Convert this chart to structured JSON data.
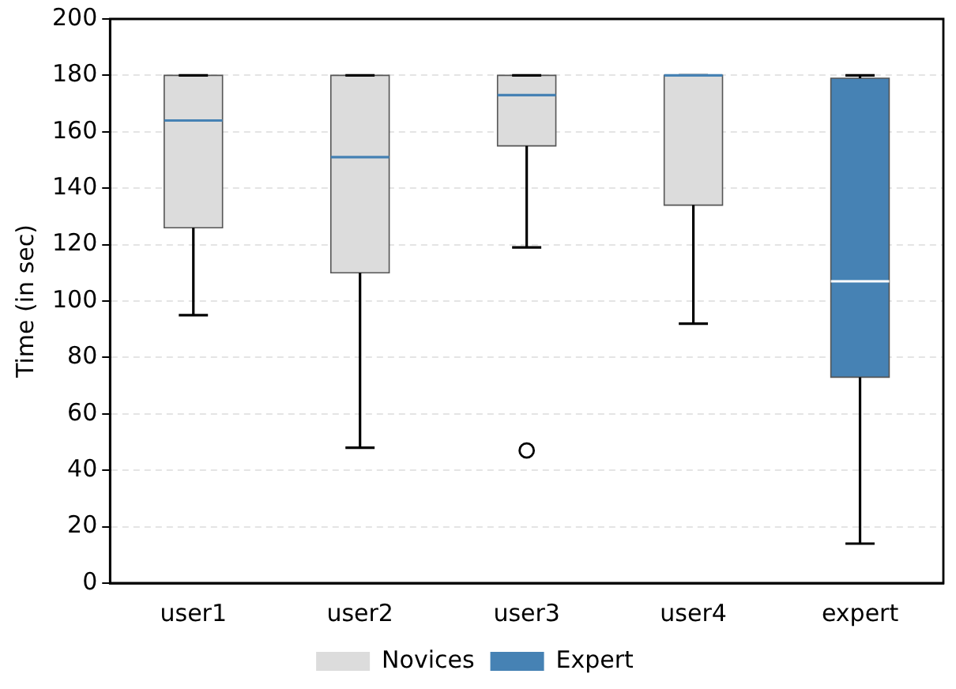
{
  "chart_data": {
    "type": "box",
    "ylabel": "Time (in sec)",
    "categories": [
      "user1",
      "user2",
      "user3",
      "user4",
      "expert"
    ],
    "ylim": [
      0,
      200
    ],
    "yticks": [
      0,
      20,
      40,
      60,
      80,
      100,
      120,
      140,
      160,
      180,
      200
    ],
    "grid": "y",
    "legend": "bottom",
    "series": [
      {
        "name": "Novices",
        "color": "#dcdcdc",
        "boxes": [
          {
            "low": 95,
            "q1": 126,
            "median": 164,
            "q3": 180,
            "high": 180
          },
          {
            "low": 48,
            "q1": 110,
            "median": 151,
            "q3": 180,
            "high": 180
          },
          {
            "low": 119,
            "q1": 155,
            "median": 173,
            "q3": 180,
            "high": 180,
            "outliers": [
              47
            ]
          },
          {
            "low": 92,
            "q1": 134,
            "median": 180,
            "q3": 180,
            "high": 180
          },
          null
        ]
      },
      {
        "name": "Expert",
        "color": "#4682b4",
        "boxes": [
          null,
          null,
          null,
          null,
          {
            "low": 14,
            "q1": 73,
            "median": 107,
            "q3": 179,
            "high": 180
          }
        ]
      }
    ]
  }
}
